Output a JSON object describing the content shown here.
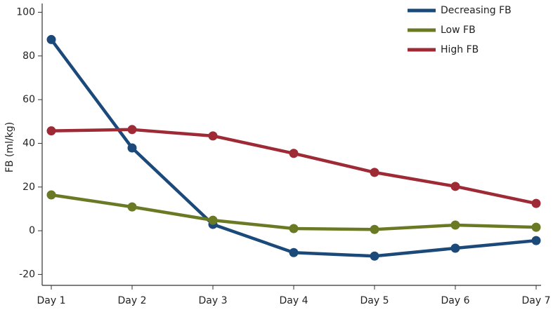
{
  "chart_data": {
    "type": "line",
    "y_label": "FB (ml/kg)",
    "categories": [
      "Day 1",
      "Day 2",
      "Day 3",
      "Day 4",
      "Day 5",
      "Day 6",
      "Day 7"
    ],
    "series": [
      {
        "name": "Decreasing FB",
        "color": "#1b4a7a",
        "values": [
          87.5,
          37.9,
          2.9,
          -10,
          -11.6,
          -8,
          -4.5
        ]
      },
      {
        "name": "Low FB",
        "color": "#6a7a24",
        "values": [
          16.4,
          10.9,
          4.8,
          1,
          0.6,
          2.6,
          1.6
        ]
      },
      {
        "name": "High FB",
        "color": "#9e2a36",
        "values": [
          45.7,
          46.3,
          43.4,
          35.4,
          26.7,
          20.3,
          12.5
        ]
      }
    ],
    "ylim": [
      -25,
      104
    ],
    "yticks": [
      -20,
      0,
      20,
      40,
      60,
      80,
      100
    ],
    "grid": false,
    "legend": "top-right"
  }
}
